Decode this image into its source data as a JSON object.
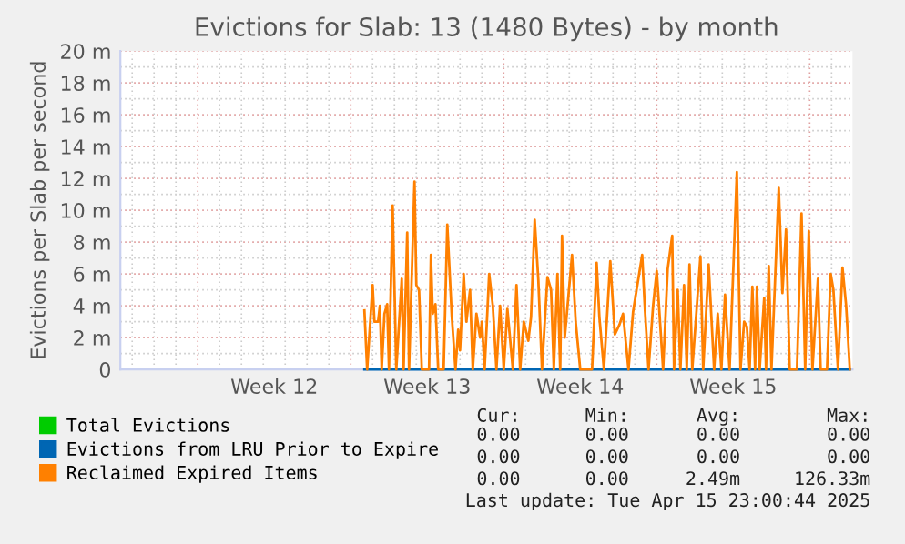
{
  "chart_data": {
    "type": "line",
    "title": "Evictions for Slab: 13 (1480 Bytes) - by month",
    "ylabel": "Evictions per Slab per second",
    "xlim": [
      "2025-03-13T11:00",
      "2025-04-15T23:00"
    ],
    "xticks": [
      {
        "value": "2025-03-20T12:00",
        "label": "Week 12"
      },
      {
        "value": "2025-03-27T12:00",
        "label": "Week 13"
      },
      {
        "value": "2025-04-03T12:00",
        "label": "Week 14"
      },
      {
        "value": "2025-04-10T12:00",
        "label": "Week 15"
      }
    ],
    "ylim": [
      0,
      20
    ],
    "yticks": [
      0,
      {
        "value": 2,
        "label": "2 m"
      },
      {
        "value": 4,
        "label": "4 m"
      },
      {
        "value": 6,
        "label": "6 m"
      },
      {
        "value": 8,
        "label": "8 m"
      },
      {
        "value": 10,
        "label": "10 m"
      },
      {
        "value": 12,
        "label": "12 m"
      },
      {
        "value": 14,
        "label": "14 m"
      },
      {
        "value": 16,
        "label": "16 m"
      },
      {
        "value": 18,
        "label": "18 m"
      },
      {
        "value": 20,
        "label": "20 m"
      }
    ],
    "grid": true,
    "legend": "bottom",
    "series": [
      {
        "name": "Total Evictions",
        "color": "#00cc00"
      },
      {
        "name": "Evictions from LRU Prior to Expire",
        "color": "#0066b3",
        "x": [
          "2025-03-24T15:00",
          "2025-04-15T20:00"
        ],
        "values": [
          0,
          0
        ]
      },
      {
        "name": "Reclaimed Expired Items",
        "color": "#ff8000",
        "x": [
          "2025-03-24T15:00",
          "2025-03-24T18:00",
          "2025-03-25T00:00",
          "2025-03-25T02:00",
          "2025-03-25T06:00",
          "2025-03-25T08:00",
          "2025-03-25T10:00",
          "2025-03-25T13:00",
          "2025-03-25T16:00",
          "2025-03-25T18:00",
          "2025-03-25T22:00",
          "2025-03-26T02:00",
          "2025-03-26T08:00",
          "2025-03-26T10:00",
          "2025-03-26T14:00",
          "2025-03-26T16:00",
          "2025-03-26T22:00",
          "2025-03-27T00:00",
          "2025-03-27T03:00",
          "2025-03-27T06:00",
          "2025-03-27T14:00",
          "2025-03-27T16:00",
          "2025-03-27T18:00",
          "2025-03-27T21:00",
          "2025-03-28T00:00",
          "2025-03-28T06:00",
          "2025-03-28T10:00",
          "2025-03-28T15:00",
          "2025-03-28T19:00",
          "2025-03-28T22:00",
          "2025-03-29T00:00",
          "2025-03-29T04:00",
          "2025-03-29T07:00",
          "2025-03-29T11:00",
          "2025-03-29T14:00",
          "2025-03-29T18:00",
          "2025-03-29T22:00",
          "2025-03-30T00:00",
          "2025-03-30T03:00",
          "2025-03-30T08:00",
          "2025-03-30T12:00",
          "2025-03-30T16:00",
          "2025-03-30T20:00",
          "2025-03-31T00:00",
          "2025-03-31T04:00",
          "2025-03-31T10:00",
          "2025-03-31T14:00",
          "2025-03-31T18:00",
          "2025-03-31T22:00",
          "2025-04-01T03:00",
          "2025-04-01T06:00",
          "2025-04-01T10:00",
          "2025-04-01T14:00",
          "2025-04-01T18:00",
          "2025-04-02T00:00",
          "2025-04-02T04:00",
          "2025-04-02T07:00",
          "2025-04-02T11:00",
          "2025-04-02T14:00",
          "2025-04-02T16:00",
          "2025-04-02T19:00",
          "2025-04-03T03:00",
          "2025-04-03T07:00",
          "2025-04-03T12:00",
          "2025-04-04T01:00",
          "2025-04-04T06:00",
          "2025-04-04T09:00",
          "2025-04-04T14:00",
          "2025-04-04T21:00",
          "2025-04-05T02:00",
          "2025-04-05T07:00",
          "2025-04-05T11:00",
          "2025-04-05T17:00",
          "2025-04-05T22:00",
          "2025-04-06T08:00",
          "2025-04-06T11:00",
          "2025-04-06T15:00",
          "2025-04-06T20:00",
          "2025-04-07T00:00",
          "2025-04-07T07:00",
          "2025-04-07T12:00",
          "2025-04-07T17:00",
          "2025-04-07T19:00",
          "2025-04-07T23:00",
          "2025-04-08T02:00",
          "2025-04-08T06:00",
          "2025-04-08T09:00",
          "2025-04-08T12:00",
          "2025-04-08T15:00",
          "2025-04-09T00:00",
          "2025-04-09T03:00",
          "2025-04-09T09:00",
          "2025-04-09T15:00",
          "2025-04-09T19:00",
          "2025-04-09T23:00",
          "2025-04-10T03:00",
          "2025-04-10T08:00",
          "2025-04-10T16:00",
          "2025-04-10T20:00",
          "2025-04-11T00:00",
          "2025-04-11T03:00",
          "2025-04-11T06:00",
          "2025-04-11T09:00",
          "2025-04-11T12:00",
          "2025-04-11T14:00",
          "2025-04-11T17:00",
          "2025-04-11T22:00",
          "2025-04-12T00:00",
          "2025-04-12T03:00",
          "2025-04-12T06:00",
          "2025-04-12T14:00",
          "2025-04-12T18:00",
          "2025-04-12T22:00",
          "2025-04-13T02:00",
          "2025-04-13T10:00",
          "2025-04-13T15:00",
          "2025-04-13T19:00",
          "2025-04-13T23:00",
          "2025-04-14T03:00",
          "2025-04-14T09:00",
          "2025-04-14T12:00",
          "2025-04-14T19:00",
          "2025-04-14T23:00",
          "2025-04-15T02:00",
          "2025-04-15T07:00",
          "2025-04-15T12:00",
          "2025-04-15T16:00",
          "2025-04-15T20:00"
        ],
        "values": [
          3.7,
          0,
          5.3,
          3,
          3,
          4,
          0,
          3.5,
          4.1,
          0,
          10.3,
          0,
          5.7,
          0,
          8.6,
          0,
          11.8,
          5.3,
          5,
          0,
          0,
          7.2,
          3.5,
          4.1,
          0,
          0,
          9.1,
          3.3,
          0,
          2.5,
          1.2,
          6,
          3,
          5,
          0,
          3.5,
          2,
          3,
          0,
          6,
          4,
          0,
          4,
          0,
          3.8,
          0,
          5.3,
          0,
          3,
          1.8,
          3.3,
          9.4,
          5.6,
          0,
          5.8,
          5,
          0,
          6,
          0,
          8.4,
          2,
          7.2,
          3,
          0,
          0,
          6.7,
          3.3,
          0,
          6.8,
          2.2,
          2.8,
          3.5,
          0,
          3.6,
          7.2,
          3.8,
          0,
          4,
          6.2,
          0,
          6.3,
          8.4,
          0,
          5,
          0,
          5.3,
          0,
          6.6,
          0,
          7.1,
          0,
          6.6,
          0,
          3.5,
          0,
          4.7,
          0,
          12.4,
          0,
          3,
          2.7,
          0,
          5.2,
          0,
          5.2,
          0,
          4.5,
          0,
          6.5,
          0,
          11.4,
          4.8,
          8.8,
          0,
          0,
          9.8,
          0,
          8.7,
          0,
          5.7,
          0,
          0,
          6,
          5,
          0,
          6.4,
          4,
          0
        ]
      }
    ],
    "annotations": [
      "Cur:",
      "Min:",
      "Avg:",
      "Max:",
      "0.00",
      "0.00",
      "0.00",
      "0.00",
      "0.00",
      "0.00",
      "0.00",
      "0.00",
      "0.00",
      "0.00",
      "2.49m",
      "126.33m",
      "Last update: Tue Apr 15 23:00:44 2025"
    ]
  }
}
